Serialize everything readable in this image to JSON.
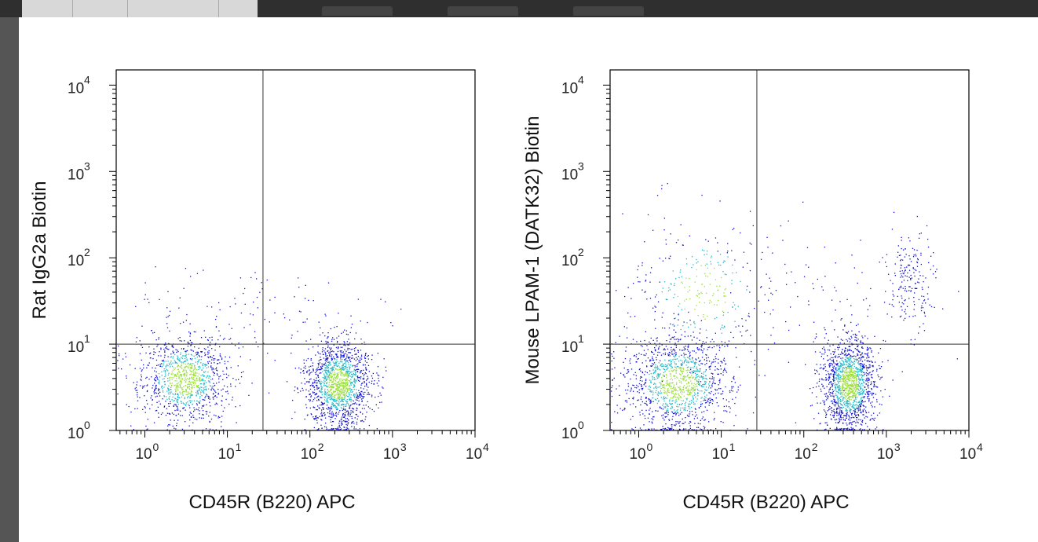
{
  "colors": {
    "background": "#ffffff",
    "frame": "#000000",
    "density_low": "#1010c8",
    "density_mid": "#22b8c8",
    "density_high": "#9adf3a"
  },
  "chart_data": [
    {
      "type": "scatter",
      "subtype": "flow-cytometry-density-dot-plot",
      "xlabel": "CD45R (B220) APC",
      "ylabel": "Rat IgG2a Biotin",
      "x_scale": "log",
      "y_scale": "log",
      "xlim": [
        0.45,
        10000
      ],
      "ylim": [
        1,
        15000
      ],
      "x_ticks": [
        1,
        10,
        100,
        1000,
        10000
      ],
      "y_ticks": [
        1,
        10,
        100,
        1000,
        10000
      ],
      "quadrant_gate": {
        "x": 27,
        "y": 10
      },
      "populations": [
        {
          "name": "",
          "x_center": 3,
          "y_center": 4,
          "x_spread_log": 0.28,
          "y_spread_log": 0.26,
          "count": 1100
        },
        {
          "name": "",
          "x_center": 220,
          "y_center": 3.5,
          "x_spread_log": 0.2,
          "y_spread_log": 0.25,
          "count": 1500
        },
        {
          "name": "",
          "x_center": 10,
          "y_center": 20,
          "x_spread_log": 0.55,
          "y_spread_log": 0.3,
          "count": 90
        },
        {
          "name": "",
          "x_center": 150,
          "y_center": 25,
          "x_spread_log": 0.5,
          "y_spread_log": 0.3,
          "count": 25
        }
      ]
    },
    {
      "type": "scatter",
      "subtype": "flow-cytometry-density-dot-plot",
      "xlabel": "CD45R (B220) APC",
      "ylabel": "Mouse LPAM-1 (DATK32) Biotin",
      "x_scale": "log",
      "y_scale": "log",
      "xlim": [
        0.45,
        10000
      ],
      "ylim": [
        1,
        15000
      ],
      "x_ticks": [
        1,
        10,
        100,
        1000,
        10000
      ],
      "y_ticks": [
        1,
        10,
        100,
        1000,
        10000
      ],
      "quadrant_gate": {
        "x": 27,
        "y": 10
      },
      "populations": [
        {
          "name": "",
          "x_center": 3,
          "y_center": 3.5,
          "x_spread_log": 0.32,
          "y_spread_log": 0.28,
          "count": 1300
        },
        {
          "name": "",
          "x_center": 350,
          "y_center": 3.5,
          "x_spread_log": 0.16,
          "y_spread_log": 0.27,
          "count": 1500
        },
        {
          "name": "",
          "x_center": 6,
          "y_center": 40,
          "x_spread_log": 0.45,
          "y_spread_log": 0.45,
          "count": 330
        },
        {
          "name": "",
          "x_center": 2000,
          "y_center": 60,
          "x_spread_log": 0.15,
          "y_spread_log": 0.3,
          "count": 200
        },
        {
          "name": "",
          "x_center": 150,
          "y_center": 30,
          "x_spread_log": 0.55,
          "y_spread_log": 0.45,
          "count": 70
        }
      ]
    }
  ]
}
